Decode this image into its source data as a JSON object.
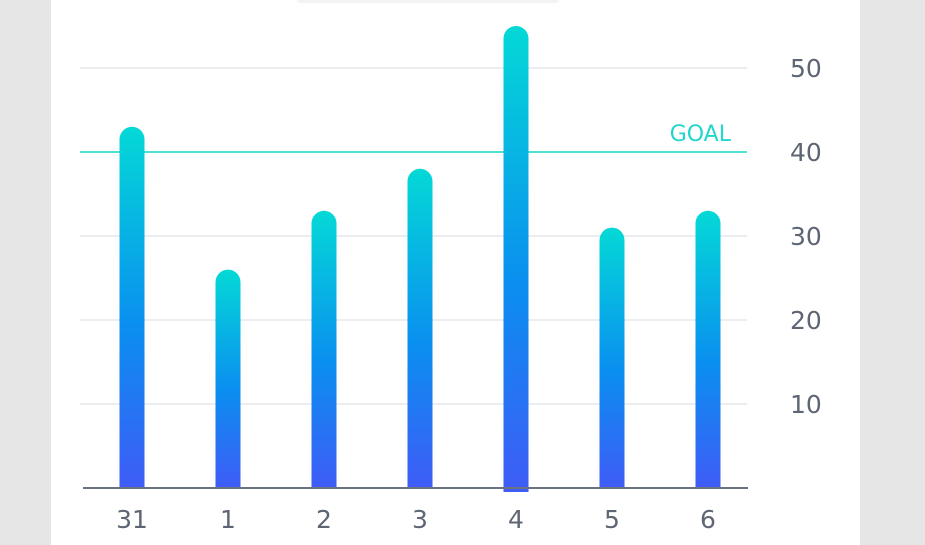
{
  "chart_data": {
    "type": "bar",
    "categories": [
      "31",
      "1",
      "2",
      "3",
      "4",
      "5",
      "6"
    ],
    "values": [
      43,
      26,
      33,
      38,
      55,
      31,
      33
    ],
    "ylim": [
      0,
      58
    ],
    "yticks": [
      10,
      20,
      30,
      40,
      50
    ],
    "goal": {
      "label": "GOAL",
      "value": 40
    },
    "grid": true,
    "y_axis_side": "right",
    "selected_index": 4,
    "colors": {
      "bar_top": "#04d9d6",
      "bar_mid": "#0a8ff0",
      "bar_bottom": "#3f5cf6",
      "goal_line": "#4fe3d3",
      "grid": "#ebedf0",
      "axis": "#6b7280",
      "tick_text": "#5e6573"
    }
  }
}
